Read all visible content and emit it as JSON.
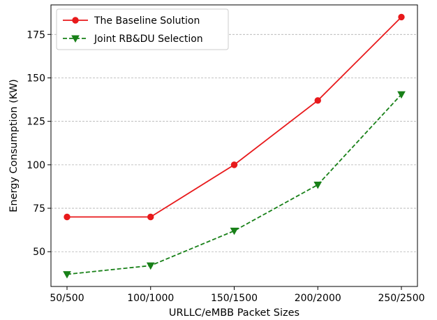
{
  "chart_data": {
    "type": "line",
    "categories": [
      "50/500",
      "100/1000",
      "150/1500",
      "200/2000",
      "250/2500"
    ],
    "series": [
      {
        "name": "The Baseline Solution",
        "values": [
          70,
          70,
          100,
          137,
          185
        ],
        "color": "#e8191b",
        "line_style": "solid",
        "marker": "circle"
      },
      {
        "name": "Joint RB&DU Selection",
        "values": [
          37,
          42,
          62,
          88.5,
          140.5
        ],
        "color": "#188018",
        "line_style": "dashed",
        "marker": "triangle-down"
      }
    ],
    "xlabel": "URLLC/eMBB Packet Sizes",
    "ylabel": "Energy Consumption (KW)",
    "ylim": [
      30,
      192
    ],
    "yticks": [
      50,
      75,
      100,
      125,
      150,
      175
    ],
    "grid": "horizontal-dashed",
    "legend_position": "upper-left"
  }
}
